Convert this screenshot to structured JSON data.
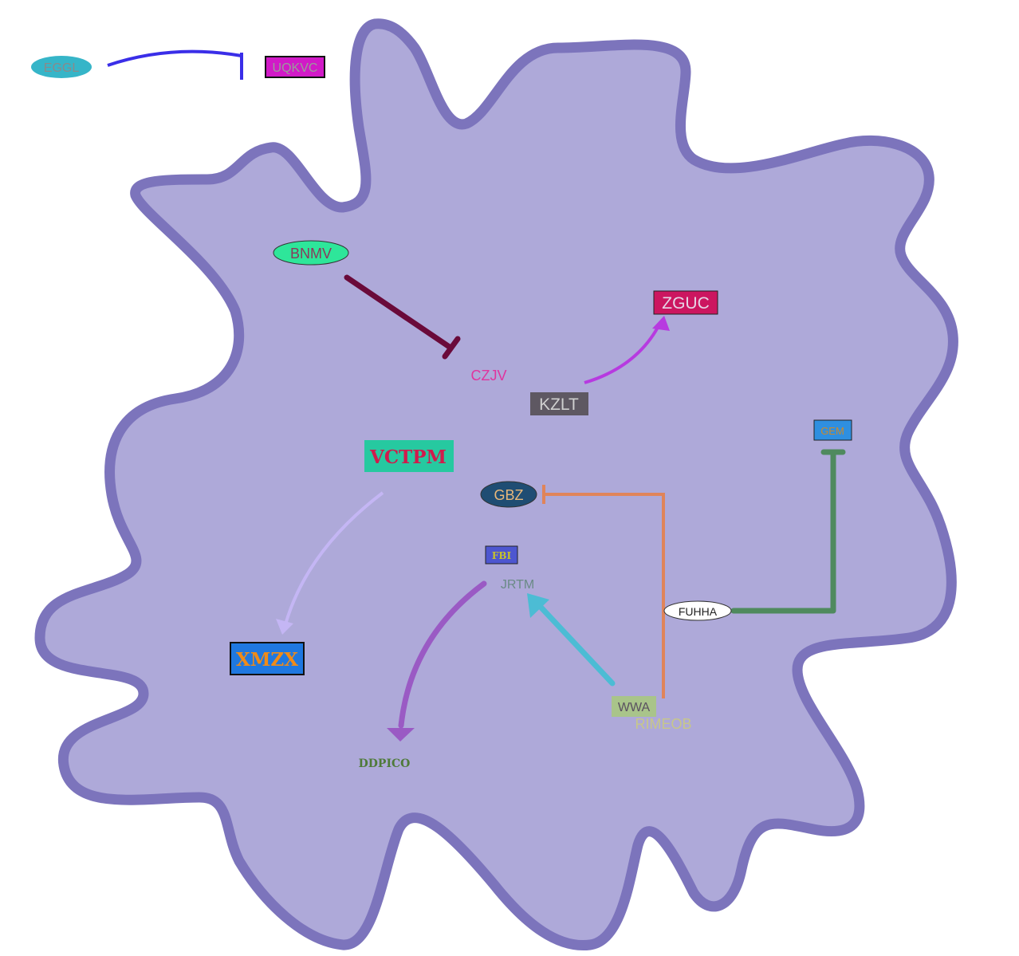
{
  "colors": {
    "cell_fill": "#aea9d9",
    "cell_stroke": "#7c74bc",
    "background": "#ffffff"
  },
  "nodes": {
    "eggl": {
      "label": "EGGL",
      "shape": "ellipse",
      "fill": "#36b5c8",
      "text": "#8a8a8a"
    },
    "uqkvc": {
      "label": "UQKVC",
      "shape": "rect",
      "fill": "#d11ac7",
      "text": "#9b9b9b"
    },
    "bnmv": {
      "label": "BNMV",
      "shape": "ellipse",
      "fill": "#2ee69a",
      "text": "#8a3a5c"
    },
    "zguc": {
      "label": "ZGUC",
      "shape": "rect",
      "fill": "#cc1660",
      "text": "#e6d5e6"
    },
    "czjv": {
      "label": "CZJV",
      "shape": "text",
      "text": "#e0349e"
    },
    "kzlt": {
      "label": "KZLT",
      "shape": "rect",
      "fill": "#5e5862",
      "text": "#cfcfcf"
    },
    "gem": {
      "label": "GEM",
      "shape": "rect",
      "fill": "#2f8fe0",
      "text": "#c98a2e"
    },
    "vctpm": {
      "label": "VCTPM",
      "shape": "rect",
      "fill": "#26c9a0",
      "text": "#d01b4c"
    },
    "gbz": {
      "label": "GBZ",
      "shape": "ellipse",
      "fill": "#1f4d73",
      "text": "#e8b87a"
    },
    "fbi": {
      "label": "FBI",
      "shape": "rect",
      "fill": "#4d56d0",
      "text": "#c8c32a"
    },
    "jrtm": {
      "label": "JRTM",
      "shape": "text",
      "text": "#6a8a86"
    },
    "fuhha": {
      "label": "FUHHA",
      "shape": "ellipse",
      "fill": "#ffffff",
      "text": "#222222"
    },
    "xmzx": {
      "label": "XMZX",
      "shape": "rect",
      "fill": "#1f78e0",
      "text": "#f08b18"
    },
    "wwa": {
      "label": "WWA",
      "shape": "rect",
      "fill": "#a9c48a",
      "text": "#5a5060"
    },
    "rimeob": {
      "label": "RIMEOB",
      "shape": "text",
      "text": "#c7c78a"
    },
    "ddpico": {
      "label": "DDPICO",
      "shape": "text",
      "text": "#4f7a3a"
    }
  },
  "edges": [
    {
      "from": "EGGL",
      "to": "UQKVC",
      "type": "inhibition",
      "color": "#3a2ee8"
    },
    {
      "from": "BNMV",
      "to": "CZJV",
      "type": "inhibition",
      "color": "#6a0a3a"
    },
    {
      "from": "KZLT",
      "to": "ZGUC",
      "type": "activation",
      "color": "#b73ae0"
    },
    {
      "from": "VCTPM",
      "to": "XMZX",
      "type": "activation",
      "color": "#c4b6f4"
    },
    {
      "from": "RIMEOB",
      "to": "GBZ",
      "type": "inhibition",
      "color": "#e0845a"
    },
    {
      "from": "FUHHA",
      "to": "GEM",
      "type": "inhibition",
      "color": "#4f8a5e"
    },
    {
      "from": "WWA",
      "to": "JRTM",
      "type": "activation",
      "color": "#4cbcd4"
    },
    {
      "from": "JRTM",
      "to": "DDPICO",
      "type": "activation",
      "color": "#9a5ac4"
    }
  ]
}
